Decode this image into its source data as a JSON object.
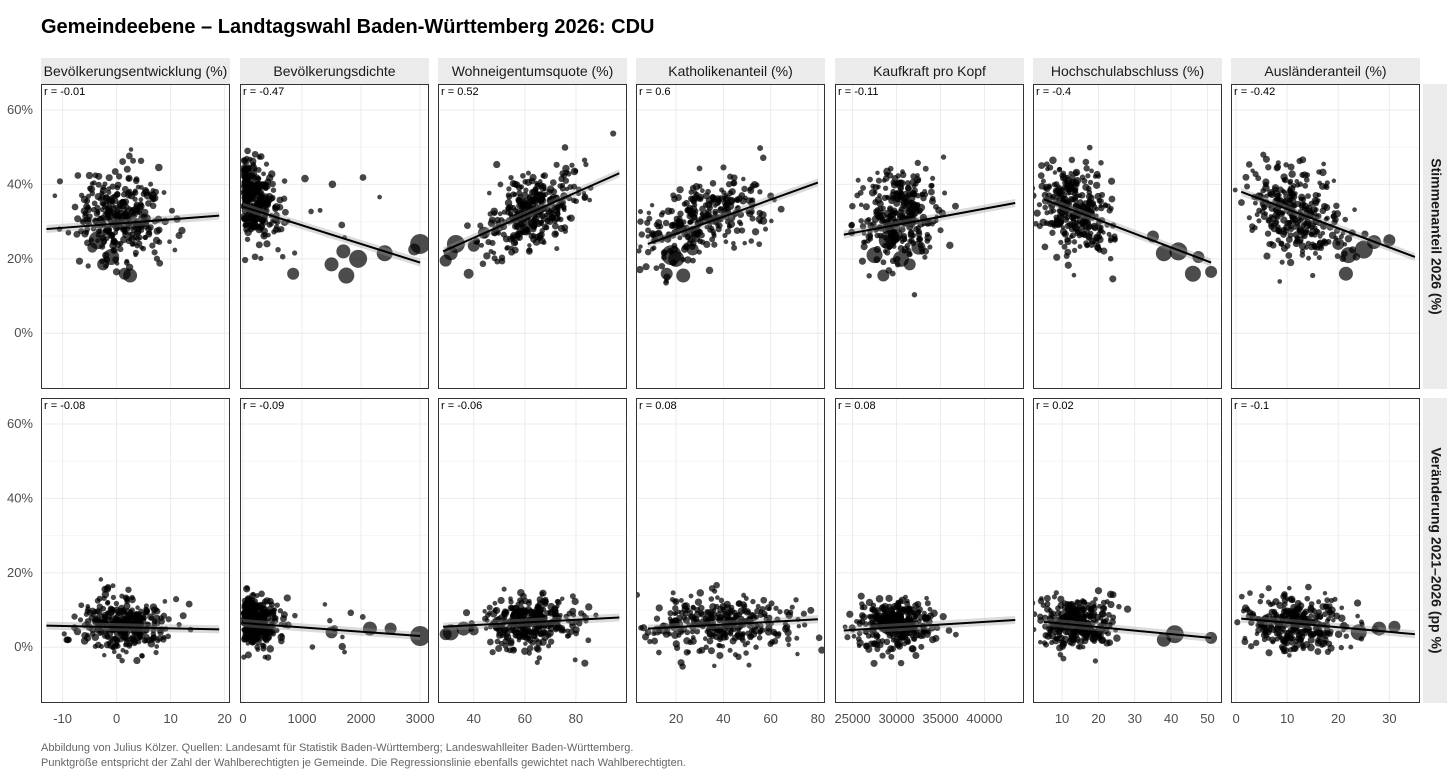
{
  "title": "Gemeindeebene – Landtagswahl Baden-Württemberg 2026: CDU",
  "caption": {
    "line1": "Abbildung von Julius Kölzer. Quellen: Landesamt für Statistik Baden-Württemberg; Landeswahlleiter Baden-Württemberg.",
    "line2": "Punktgröße entspricht der Zahl der Wahlberechtigten je Gemeinde. Die Regressionslinie ebenfalls gewichtet nach Wahlberechtigten."
  },
  "colors": {
    "strip_bg": "#ebebeb",
    "grid": "#ebebeb",
    "points": "#000000",
    "panel_border": "#333333"
  },
  "chart_data": {
    "type": "scatter",
    "y_axis": {
      "ticks": [
        0,
        20,
        40,
        60
      ],
      "tick_labels": [
        "0%",
        "20%",
        "40%",
        "60%"
      ],
      "ylim": [
        -15,
        67
      ]
    },
    "rows": [
      {
        "label": "Stimmenanteil 2026 (%)"
      },
      {
        "label": "Veränderung 2021–2026 (pp %)"
      }
    ],
    "panels": [
      {
        "label": "Bevölkerungsentwicklung (%)",
        "xlim": [
          -14,
          21
        ],
        "ticks": [
          -10,
          0,
          10,
          20
        ],
        "tick_labels": [
          "-10",
          "0",
          "10",
          "20"
        ],
        "rows": [
          {
            "r": "r = -0.01",
            "cloud": {
              "cx": 1,
              "sx": 4,
              "y0": 32,
              "sy": 6,
              "n": 320
            },
            "trend": [
              [
                -13,
                28
              ],
              [
                19,
                31.6
              ]
            ],
            "big": [
              [
                -3.5,
                25,
                9
              ],
              [
                -2.5,
                18.5,
                6
              ],
              [
                -1,
                20.5,
                8
              ],
              [
                1.5,
                16,
                6
              ],
              [
                2.5,
                15.5,
                7
              ],
              [
                -4.5,
                23,
                5
              ]
            ]
          },
          {
            "r": "r = -0.08",
            "cloud": {
              "cx": 1,
              "sx": 4,
              "y0": 6,
              "sy": 3.5,
              "n": 320
            },
            "trend": [
              [
                -13,
                5.8
              ],
              [
                19,
                4.8
              ]
            ],
            "big": [
              [
                -1,
                6,
                7
              ],
              [
                1,
                5.5,
                8
              ],
              [
                2.5,
                7,
                6
              ]
            ]
          }
        ]
      },
      {
        "label": "Bevölkerungsdichte",
        "xlim": [
          -50,
          3150
        ],
        "ticks": [
          0,
          1000,
          2000,
          3000
        ],
        "tick_labels": [
          "0",
          "1000",
          "2000",
          "3000"
        ],
        "rows": [
          {
            "r": "r = -0.47",
            "cloud": {
              "cx": 250,
              "sx": 300,
              "y0": 34,
              "sy": 5.5,
              "n": 320,
              "skew": true
            },
            "trend": [
              [
                0,
                34
              ],
              [
                3000,
                19
              ]
            ],
            "big": [
              [
                3000,
                24,
                10
              ],
              [
                2400,
                21.5,
                8
              ],
              [
                1950,
                20,
                9
              ],
              [
                1500,
                18.5,
                7
              ],
              [
                1750,
                15.5,
                8
              ],
              [
                2900,
                22.5,
                6
              ],
              [
                1700,
                22,
                7
              ],
              [
                850,
                16,
                6
              ]
            ]
          },
          {
            "r": "r = -0.09",
            "cloud": {
              "cx": 250,
              "sx": 300,
              "y0": 6.5,
              "sy": 3.5,
              "n": 320,
              "skew": true
            },
            "trend": [
              [
                0,
                6.5
              ],
              [
                3000,
                3
              ]
            ],
            "big": [
              [
                3000,
                3,
                10
              ],
              [
                2150,
                5,
                7
              ],
              [
                1500,
                4,
                6
              ],
              [
                2500,
                5,
                6
              ]
            ]
          }
        ]
      },
      {
        "label": "Wohneigentumsquote (%)",
        "xlim": [
          26,
          100
        ],
        "ticks": [
          40,
          60,
          80
        ],
        "tick_labels": [
          "40",
          "60",
          "80"
        ],
        "rows": [
          {
            "r": "r = 0.52",
            "cloud": {
              "cx": 62,
              "sx": 9,
              "y0": 33,
              "sy": 5,
              "n": 320,
              "slope": 0.3
            },
            "trend": [
              [
                28,
                22
              ],
              [
                97,
                43
              ]
            ],
            "big": [
              [
                33,
                24,
                9
              ],
              [
                31,
                21.5,
                7
              ],
              [
                29,
                19.5,
                6
              ],
              [
                40,
                23.5,
                6
              ],
              [
                38,
                16,
                5
              ],
              [
                44,
                27,
                6
              ]
            ]
          },
          {
            "r": "r = -0.06",
            "cloud": {
              "cx": 62,
              "sx": 9,
              "y0": 6.5,
              "sy": 3.5,
              "n": 320
            },
            "trend": [
              [
                28,
                5.5
              ],
              [
                97,
                8
              ]
            ],
            "big": [
              [
                31,
                4,
                8
              ],
              [
                29,
                3.5,
                6
              ],
              [
                36,
                5,
                7
              ],
              [
                40,
                4.5,
                5
              ]
            ]
          }
        ]
      },
      {
        "label": "Katholikenanteil (%)",
        "xlim": [
          3,
          83
        ],
        "ticks": [
          20,
          40,
          60,
          80
        ],
        "tick_labels": [
          "20",
          "40",
          "60",
          "80"
        ],
        "rows": [
          {
            "r": "r = 0.6",
            "cloud": {
              "cx": 30,
              "sx": 14,
              "y0": 30,
              "sy": 5,
              "n": 320,
              "slope": 0.22
            },
            "trend": [
              [
                8,
                24
              ],
              [
                80,
                40.5
              ]
            ],
            "big": [
              [
                18,
                21,
                10
              ],
              [
                23,
                15.5,
                7
              ],
              [
                16,
                16,
                6
              ],
              [
                12,
                26,
                6
              ],
              [
                20,
                20,
                8
              ],
              [
                27,
                22.5,
                6
              ]
            ]
          },
          {
            "r": "r = 0.08",
            "cloud": {
              "cx": 40,
              "sx": 16,
              "y0": 6.5,
              "sy": 3.5,
              "n": 320
            },
            "trend": [
              [
                8,
                5
              ],
              [
                80,
                7.5
              ]
            ],
            "big": [
              [
                15,
                5,
                6
              ],
              [
                20,
                6,
                7
              ],
              [
                12,
                4.5,
                5
              ]
            ]
          }
        ]
      },
      {
        "label": "Kaufkraft pro Kopf",
        "xlim": [
          23000,
          44500
        ],
        "ticks": [
          25000,
          30000,
          35000,
          40000
        ],
        "tick_labels": [
          "25000",
          "30000",
          "35000",
          "40000"
        ],
        "rows": [
          {
            "r": "r = -0.11",
            "cloud": {
              "cx": 30000,
              "sx": 2200,
              "y0": 32,
              "sy": 6,
              "n": 320
            },
            "trend": [
              [
                24000,
                26.5
              ],
              [
                43500,
                35
              ]
            ],
            "big": [
              [
                27500,
                21,
                8
              ],
              [
                28500,
                15.5,
                6
              ],
              [
                29000,
                25,
                9
              ],
              [
                30500,
                20,
                8
              ],
              [
                31500,
                18.5,
                6
              ],
              [
                32500,
                23,
                7
              ],
              [
                30000,
                26.5,
                6
              ]
            ]
          },
          {
            "r": "r = 0.08",
            "cloud": {
              "cx": 30000,
              "sx": 2200,
              "y0": 6.5,
              "sy": 3.5,
              "n": 320
            },
            "trend": [
              [
                24000,
                4.5
              ],
              [
                43500,
                7.3
              ]
            ],
            "big": [
              [
                29500,
                5,
                8
              ],
              [
                31000,
                6,
                6
              ]
            ]
          }
        ]
      },
      {
        "label": "Hochschulabschluss (%)",
        "xlim": [
          2,
          54
        ],
        "ticks": [
          10,
          20,
          30,
          40,
          50
        ],
        "tick_labels": [
          "10",
          "20",
          "30",
          "40",
          "50"
        ],
        "rows": [
          {
            "r": "r = -0.4",
            "cloud": {
              "cx": 14,
              "sx": 5,
              "y0": 33,
              "sy": 5.5,
              "n": 320,
              "slope": -0.35
            },
            "trend": [
              [
                5,
                36
              ],
              [
                51,
                19
              ]
            ],
            "big": [
              [
                42,
                22,
                9
              ],
              [
                46,
                16,
                8
              ],
              [
                38,
                21.5,
                8
              ],
              [
                51,
                16.5,
                6
              ],
              [
                47.5,
                20.5,
                6
              ],
              [
                35,
                26,
                6
              ]
            ]
          },
          {
            "r": "r = 0.02",
            "cloud": {
              "cx": 14,
              "sx": 5,
              "y0": 6.5,
              "sy": 3.5,
              "n": 320
            },
            "trend": [
              [
                5,
                6.8
              ],
              [
                51,
                2.5
              ]
            ],
            "big": [
              [
                41,
                3.5,
                9
              ],
              [
                38,
                2,
                7
              ],
              [
                51,
                2.5,
                6
              ]
            ]
          }
        ]
      },
      {
        "label": "Ausländeranteil (%)",
        "xlim": [
          -1,
          36
        ],
        "ticks": [
          0,
          10,
          20,
          30
        ],
        "tick_labels": [
          "0",
          "10",
          "20",
          "30"
        ],
        "rows": [
          {
            "r": "r = -0.42",
            "cloud": {
              "cx": 12,
              "sx": 5,
              "y0": 32,
              "sy": 5.5,
              "n": 320,
              "slope": -0.4
            },
            "trend": [
              [
                1,
                38
              ],
              [
                35,
                20.5
              ]
            ],
            "big": [
              [
                25,
                22.5,
                9
              ],
              [
                22,
                21,
                8
              ],
              [
                27,
                24.5,
                7
              ],
              [
                21.5,
                16,
                7
              ],
              [
                30,
                25,
                6
              ],
              [
                20,
                24,
                6
              ]
            ]
          },
          {
            "r": "r = -0.1",
            "cloud": {
              "cx": 12,
              "sx": 5,
              "y0": 6.5,
              "sy": 3.5,
              "n": 320
            },
            "trend": [
              [
                1,
                7.7
              ],
              [
                35,
                3.5
              ]
            ],
            "big": [
              [
                24,
                4,
                8
              ],
              [
                28,
                5,
                7
              ],
              [
                31,
                5.5,
                6
              ]
            ]
          }
        ]
      }
    ]
  }
}
